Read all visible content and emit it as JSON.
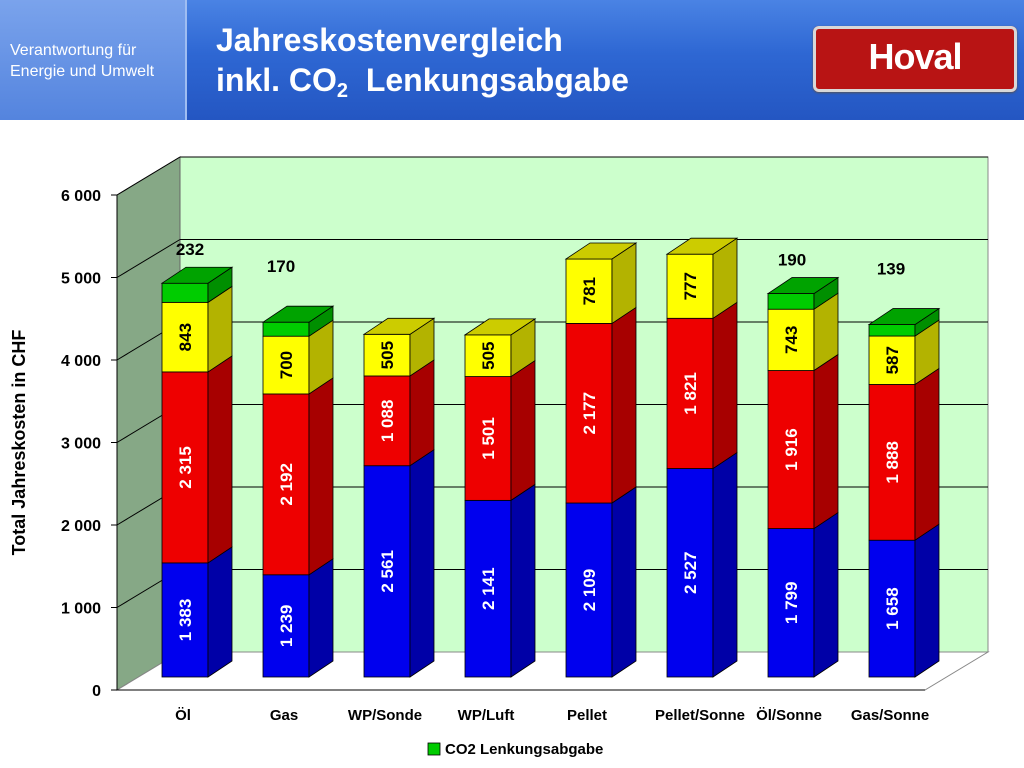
{
  "header": {
    "tagline_line1": "Verantwortung für",
    "tagline_line2": "Energie und Umwelt",
    "title_line1": "Jahreskostenvergleich",
    "title_line2_prefix": "inkl. CO",
    "title_line2_sub": "2",
    "title_line2_suffix": "  Lenkungsabgabe",
    "logo_text": "Hoval"
  },
  "chart_data": {
    "type": "bar",
    "stacked": true,
    "three_d": true,
    "categories": [
      "Öl",
      "Gas",
      "WP/Sonde",
      "WP/Luft",
      "Pellet",
      "Pellet/Sonne",
      "Öl/Sonne",
      "Gas/Sonne"
    ],
    "ylabel": "Total Jahreskosten in CHF",
    "ylim": [
      0,
      6000
    ],
    "yticks": [
      0,
      1000,
      2000,
      3000,
      4000,
      5000,
      6000
    ],
    "ytick_labels": [
      "0",
      "1 000",
      "2 000",
      "3 000",
      "4 000",
      "5 000",
      "6 000"
    ],
    "grid": true,
    "legend": {
      "placement": "bottom-center",
      "shown": [
        "CO2 Lenkungsabgabe"
      ]
    },
    "series": [
      {
        "key": "s1",
        "color": "#0000ee",
        "values": [
          1383,
          1239,
          2561,
          2141,
          2109,
          2527,
          1799,
          1658
        ],
        "labels": [
          "1 383",
          "1 239",
          "2 561",
          "2 141",
          "2 109",
          "2 527",
          "1 799",
          "1 658"
        ]
      },
      {
        "key": "s2",
        "color": "#ee0000",
        "values": [
          2315,
          2192,
          1088,
          1501,
          2177,
          1821,
          1916,
          1888
        ],
        "labels": [
          "2 315",
          "2 192",
          "1 088",
          "1 501",
          "2 177",
          "1 821",
          "1 916",
          "1 888"
        ]
      },
      {
        "key": "s3",
        "color": "#ffff00",
        "values": [
          843,
          700,
          505,
          505,
          781,
          777,
          743,
          587
        ],
        "labels": [
          "843",
          "700",
          "505",
          "505",
          "781",
          "777",
          "743",
          "587"
        ]
      },
      {
        "name": "CO2 Lenkungsabgabe",
        "color": "#00cc00",
        "values": [
          232,
          170,
          0,
          0,
          0,
          0,
          190,
          139
        ],
        "labels": [
          "232",
          "170",
          "",
          "",
          "",
          "",
          "190",
          "139"
        ]
      }
    ]
  }
}
